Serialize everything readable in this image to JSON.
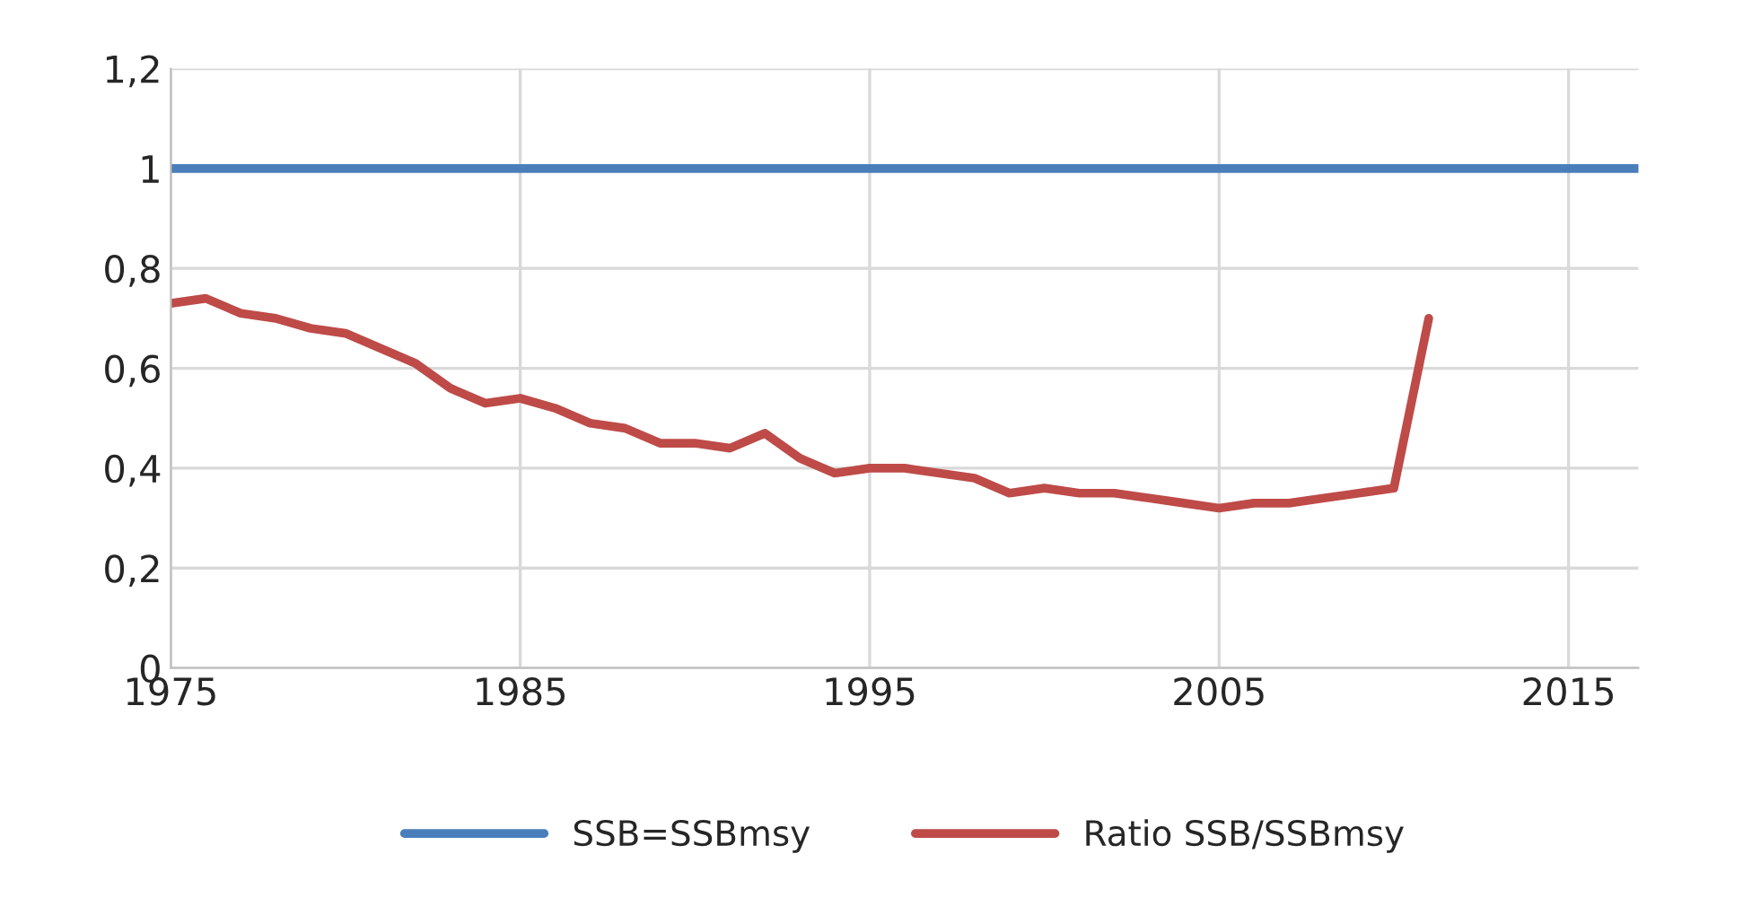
{
  "chart_data": {
    "type": "line",
    "xlim": [
      1975,
      2017
    ],
    "xticks": [
      1975,
      1985,
      1995,
      2005,
      2015
    ],
    "ylim": [
      0,
      1.2
    ],
    "yticks": [
      {
        "value": 0,
        "label": "0"
      },
      {
        "value": 0.2,
        "label": "0,2"
      },
      {
        "value": 0.4,
        "label": "0,4"
      },
      {
        "value": 0.6,
        "label": "0,6"
      },
      {
        "value": 0.8,
        "label": "0,8"
      },
      {
        "value": 1,
        "label": "1"
      },
      {
        "value": 1.2,
        "label": "1,2"
      }
    ],
    "grid": true,
    "legend": "bottom",
    "series": [
      {
        "name": "SSB=SSBmsy",
        "color": "#4a7ebb",
        "x": [
          1975,
          2017
        ],
        "values": [
          1,
          1
        ]
      },
      {
        "name": "Ratio SSB/SSBmsy",
        "color": "#be4b48",
        "x": [
          1975,
          1976,
          1977,
          1978,
          1979,
          1980,
          1981,
          1982,
          1983,
          1984,
          1985,
          1986,
          1987,
          1988,
          1989,
          1990,
          1991,
          1992,
          1993,
          1994,
          1995,
          1996,
          1997,
          1998,
          1999,
          2000,
          2001,
          2002,
          2003,
          2004,
          2005,
          2006,
          2007,
          2008,
          2009,
          2010,
          2011
        ],
        "values": [
          0.73,
          0.74,
          0.71,
          0.7,
          0.68,
          0.67,
          0.64,
          0.61,
          0.56,
          0.53,
          0.54,
          0.52,
          0.49,
          0.48,
          0.45,
          0.45,
          0.44,
          0.47,
          0.42,
          0.39,
          0.4,
          0.4,
          0.39,
          0.38,
          0.35,
          0.36,
          0.35,
          0.35,
          0.34,
          0.33,
          0.32,
          0.33,
          0.33,
          0.34,
          0.35,
          0.36,
          0.7
        ]
      }
    ]
  }
}
